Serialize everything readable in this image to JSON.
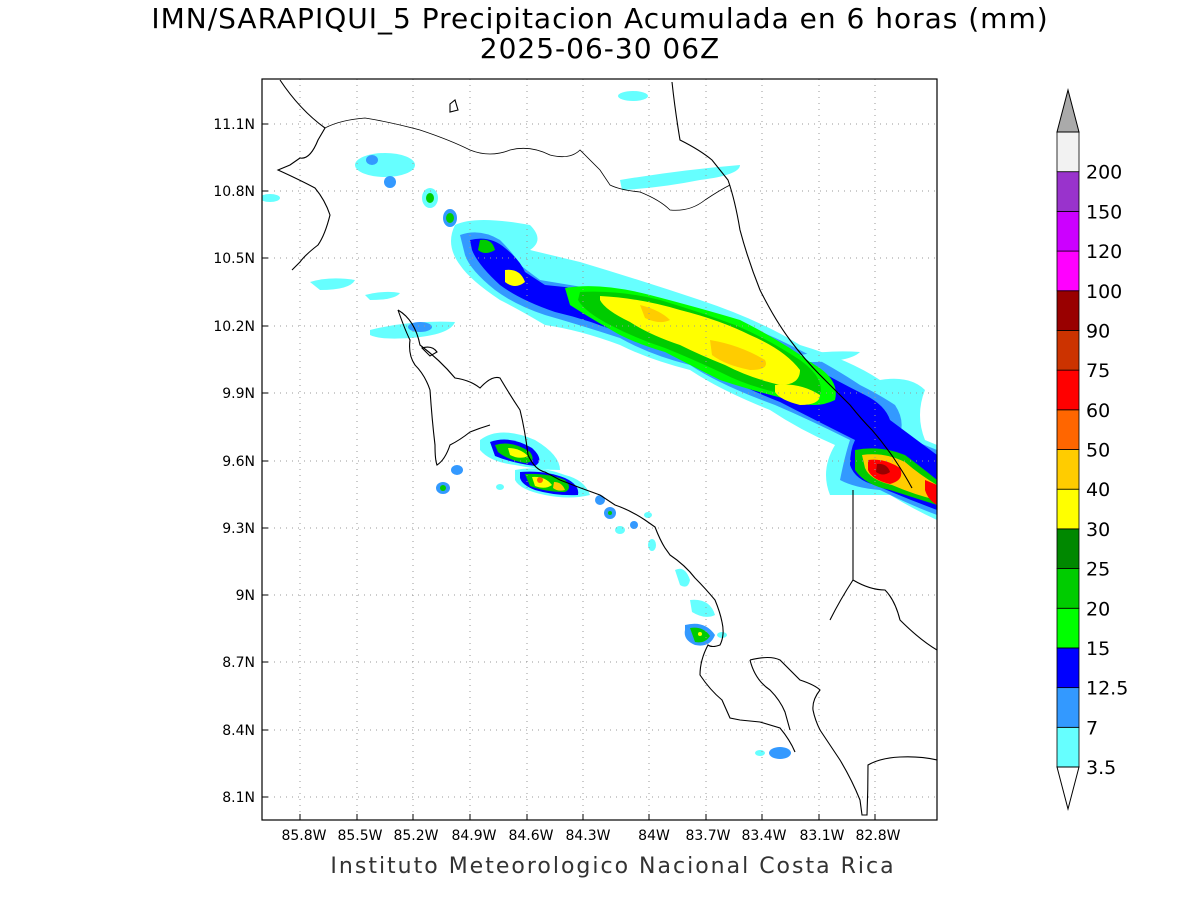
{
  "title": {
    "line1": "IMN/SARAPIQUI_5 Precipitacion Acumulada en 6 horas (mm)",
    "line2": "2025-06-30 06Z"
  },
  "footer": "Instituto Meteorologico Nacional Costa Rica",
  "map": {
    "lat_ticks": [
      "11.1N",
      "10.8N",
      "10.5N",
      "10.2N",
      "9.9N",
      "9.6N",
      "9.3N",
      "9N",
      "8.7N",
      "8.4N",
      "8.1N"
    ],
    "lon_ticks": [
      "85.8W",
      "85.5W",
      "85.2W",
      "84.9W",
      "84.6W",
      "84.3W",
      "84W",
      "83.7W",
      "83.4W",
      "83.1W",
      "82.8W"
    ],
    "lat_range": [
      8.0,
      11.3
    ],
    "lon_range": [
      -86.0,
      -82.5
    ],
    "gridlines": true
  },
  "colorbar": {
    "labels": [
      "3.5",
      "7",
      "12.5",
      "15",
      "20",
      "25",
      "30",
      "40",
      "50",
      "60",
      "75",
      "90",
      "100",
      "120",
      "150",
      "200"
    ],
    "colors": [
      "#66ffff",
      "#3399ff",
      "#0000ff",
      "#00ff00",
      "#00cc00",
      "#008800",
      "#ffff00",
      "#ffcc00",
      "#ff6600",
      "#ff0000",
      "#cc3300",
      "#990000",
      "#ff00ff",
      "#cc00ff",
      "#9933cc",
      "#f2f2f2"
    ],
    "end_colors": [
      "#ffffff",
      "#aaaaaa"
    ]
  }
}
